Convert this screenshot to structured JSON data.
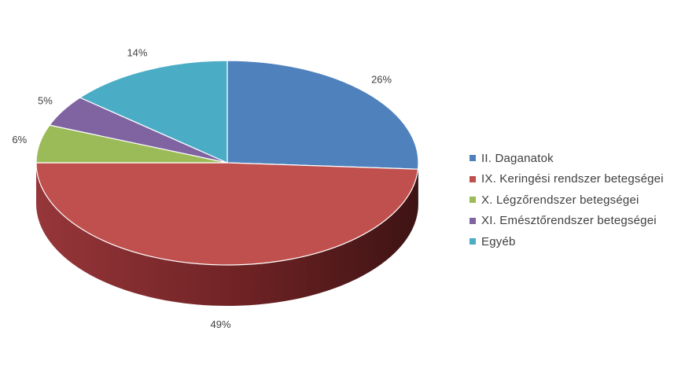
{
  "chart_data": {
    "type": "pie",
    "three_d": true,
    "legend_position": "right",
    "slices": [
      {
        "label": "II. Daganatok",
        "value": 26,
        "value_label": "26%",
        "color": "#4F81BD"
      },
      {
        "label": "IX. Keringési rendszer betegségei",
        "value": 49,
        "value_label": "49%",
        "color": "#C0504D"
      },
      {
        "label": "X. Légzőrendszer betegségei",
        "value": 6,
        "value_label": "6%",
        "color": "#9BBB59"
      },
      {
        "label": "XI. Emésztőrendszer betegségei",
        "value": 5,
        "value_label": "5%",
        "color": "#8064A2"
      },
      {
        "label": "Egyéb",
        "value": 14,
        "value_label": "14%",
        "color": "#4BACC6"
      }
    ]
  }
}
